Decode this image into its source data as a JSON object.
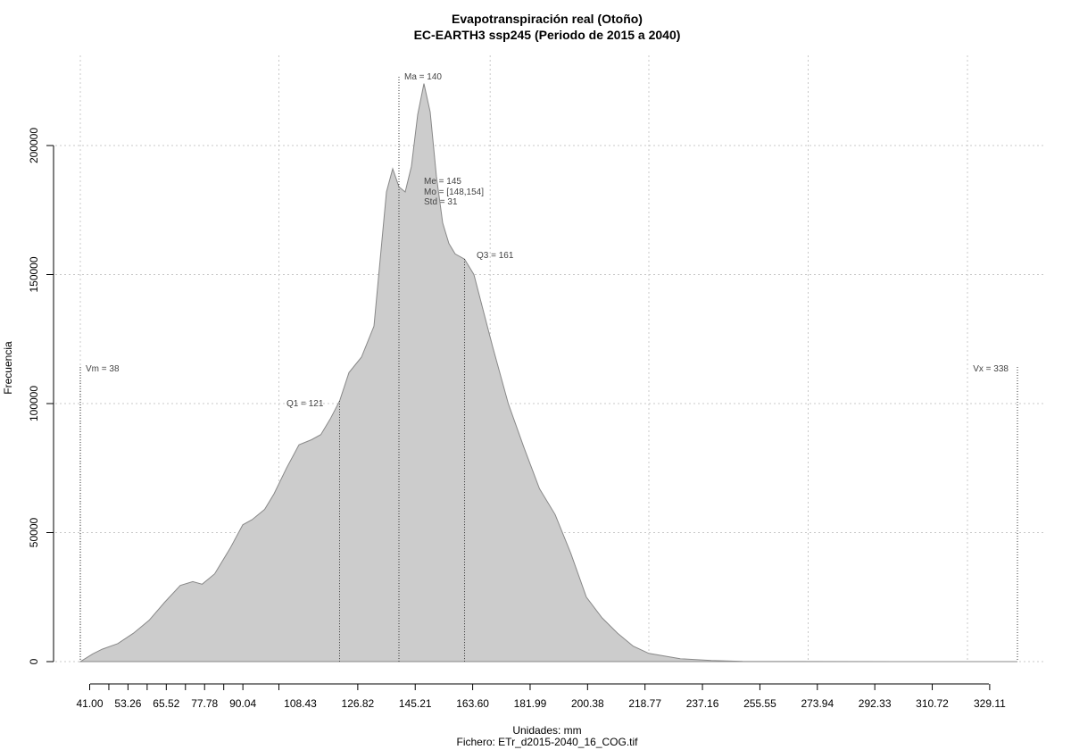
{
  "chart_data": {
    "type": "area",
    "title": "Evapotranspiración real (Otoño)",
    "subtitle": "EC-EARTH3 ssp245 (Periodo de 2015 a 2040)",
    "xlabel": "Unidades: mm",
    "ylabel": "Frecuencia",
    "caption": "Fichero: ETr_d2015-2040_16_COG.tif",
    "xlim": [
      38,
      338
    ],
    "ylim": [
      0,
      200000
    ],
    "x_ticks": [
      "41.00",
      "53.26",
      "65.52",
      "77.78",
      "90.04",
      "108.43",
      "126.82",
      "145.21",
      "163.60",
      "181.99",
      "200.38",
      "218.77",
      "237.16",
      "255.55",
      "273.94",
      "292.33",
      "310.72",
      "329.11"
    ],
    "y_ticks": [
      "0",
      "50000",
      "100000",
      "150000",
      "200000"
    ],
    "grid": true,
    "fill_color": "#cccccc",
    "line_color": "#888888",
    "series": [
      {
        "x": [
          38,
          40,
          42,
          45,
          50,
          55,
          60,
          65,
          70,
          74,
          77,
          81,
          86,
          90,
          93,
          97,
          100,
          104,
          108,
          112,
          115,
          118,
          121,
          124,
          128,
          132,
          134,
          136,
          138,
          140,
          142,
          144,
          146,
          148,
          150,
          152,
          154,
          156,
          158,
          161,
          164,
          167,
          170,
          175,
          180,
          185,
          190,
          195,
          200,
          205,
          210,
          215,
          220,
          230,
          240,
          250,
          270,
          300,
          338
        ],
        "y": [
          0,
          1500,
          3000,
          4800,
          7000,
          11000,
          16000,
          23000,
          29500,
          31000,
          30000,
          34000,
          44000,
          53000,
          55000,
          59000,
          65000,
          75000,
          84000,
          86000,
          88000,
          94000,
          101000,
          112000,
          118000,
          130000,
          156000,
          182000,
          191000,
          184000,
          182000,
          192000,
          212000,
          224000,
          213000,
          188000,
          170000,
          162000,
          158000,
          156000,
          150000,
          136000,
          122000,
          100000,
          83000,
          67000,
          57000,
          42000,
          25000,
          17000,
          11000,
          6000,
          3200,
          1100,
          400,
          100,
          20,
          5,
          0
        ]
      }
    ],
    "annotations": {
      "vm": {
        "label": "Vm = 38",
        "x": 38
      },
      "vx": {
        "label": "Vx = 338",
        "x": 338
      },
      "q1": {
        "label": "Q1 = 121",
        "x": 121,
        "y": 101000
      },
      "ma": {
        "label": "Ma = 140",
        "x": 140
      },
      "q3": {
        "label": "Q3 = 161",
        "x": 161,
        "y": 156000
      },
      "me": {
        "label": "Me = 145"
      },
      "mo": {
        "label": "Mo = [148,154]"
      },
      "std": {
        "label": "Std = 31"
      }
    }
  }
}
